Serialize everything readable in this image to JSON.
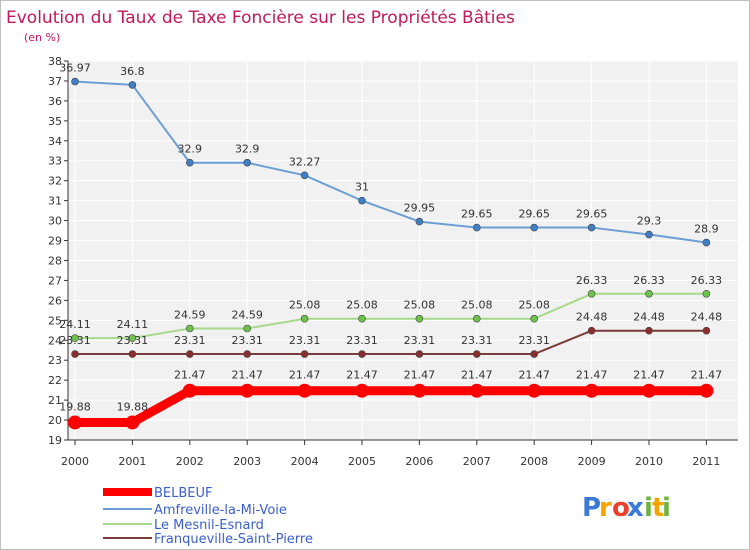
{
  "chart_data": {
    "type": "line",
    "title": "Evolution du Taux de Taxe Foncière sur les Propriétés Bâties",
    "subtitle": "(en %)",
    "x": [
      "2000",
      "2001",
      "2002",
      "2003",
      "2004",
      "2005",
      "2006",
      "2007",
      "2008",
      "2009",
      "2010",
      "2011"
    ],
    "ylim": [
      19,
      38
    ],
    "yticks": [
      "19",
      "20",
      "21",
      "22",
      "23",
      "24",
      "25",
      "26",
      "27",
      "28",
      "29",
      "30",
      "31",
      "32",
      "33",
      "34",
      "35",
      "36",
      "37",
      "38"
    ],
    "series": [
      {
        "name": "BELBEUF",
        "color": "#ff0000",
        "values": [
          19.88,
          19.88,
          21.47,
          21.47,
          21.47,
          21.47,
          21.47,
          21.47,
          21.47,
          21.47,
          21.47,
          21.47
        ],
        "labels": [
          "19.88",
          "19.88",
          "21.47",
          "21.47",
          "21.47",
          "21.47",
          "21.47",
          "21.47",
          "21.47",
          "21.47",
          "21.47",
          "21.47"
        ]
      },
      {
        "name": "Amfreville-la-Mi-Voie",
        "color": "#6b9fd4",
        "marker": "#3f7fc6",
        "values": [
          36.97,
          36.8,
          32.9,
          32.9,
          32.27,
          31,
          29.95,
          29.65,
          29.65,
          29.65,
          29.3,
          28.9
        ],
        "labels": [
          "36.97",
          "36.8",
          "32.9",
          "32.9",
          "32.27",
          "31",
          "29.95",
          "29.65",
          "29.65",
          "29.65",
          "29.3",
          "28.9"
        ]
      },
      {
        "name": "Le Mesnil-Esnard",
        "color": "#a6d98a",
        "marker": "#6cc24a",
        "values": [
          24.11,
          24.11,
          24.59,
          24.59,
          25.08,
          25.08,
          25.08,
          25.08,
          25.08,
          26.33,
          26.33,
          26.33
        ],
        "labels": [
          "24.11",
          "24.11",
          "24.59",
          "24.59",
          "25.08",
          "25.08",
          "25.08",
          "25.08",
          "25.08",
          "26.33",
          "26.33",
          "26.33"
        ]
      },
      {
        "name": "Franqueville-Saint-Pierre",
        "color": "#7a3b3b",
        "marker": "#8b2e2e",
        "values": [
          23.31,
          23.31,
          23.31,
          23.31,
          23.31,
          23.31,
          23.31,
          23.31,
          23.31,
          24.48,
          24.48,
          24.48
        ],
        "labels": [
          "23.31",
          "23.31",
          "23.31",
          "23.31",
          "23.31",
          "23.31",
          "23.31",
          "23.31",
          "23.31",
          "24.48",
          "24.48",
          "24.48"
        ]
      }
    ],
    "legend_position": "bottom-left"
  },
  "brand": {
    "letters": [
      "P",
      "r",
      "o",
      "x",
      "i",
      "t",
      "i"
    ],
    "colors": [
      "#3a7bd5",
      "#f4a300",
      "#e8402a",
      "#3a7bd5",
      "#6cb33f",
      "#f4a300",
      "#6cb33f"
    ]
  }
}
